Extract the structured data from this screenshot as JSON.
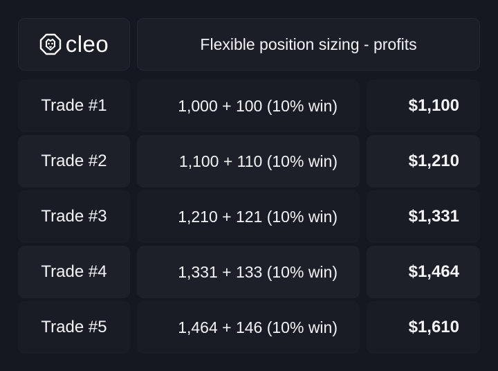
{
  "brand": {
    "name": "cleo",
    "icon": "lion-icon"
  },
  "header": {
    "title": "Flexible position sizing - profits"
  },
  "rows": [
    {
      "trade": "Trade #1",
      "calc": "1,000 + 100 (10% win)",
      "total": "$1,100"
    },
    {
      "trade": "Trade #2",
      "calc": "1,100 + 110 (10% win)",
      "total": "$1,210"
    },
    {
      "trade": "Trade #3",
      "calc": "1,210 + 121 (10% win)",
      "total": "$1,331"
    },
    {
      "trade": "Trade #4",
      "calc": "1,331 + 133 (10% win)",
      "total": "$1,464"
    },
    {
      "trade": "Trade #5",
      "calc": "1,464 + 146 (10% win)",
      "total": "$1,610"
    }
  ],
  "colors": {
    "background": "#161821",
    "text": "#f3f4f7"
  }
}
